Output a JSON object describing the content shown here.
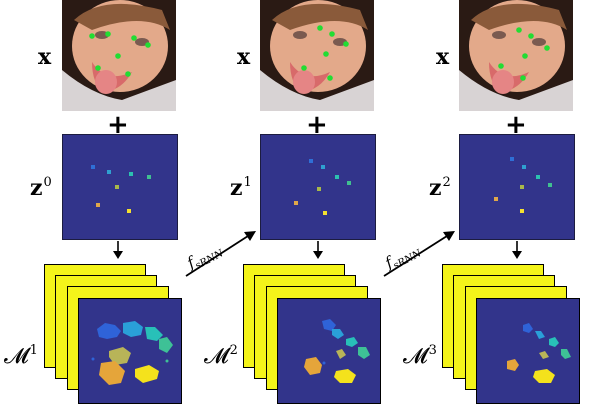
{
  "input_label": "x",
  "plus_sign": "+",
  "columns": [
    {
      "z_base": "z",
      "z_sup": "0",
      "m_base": "𝓜",
      "m_sup": "1"
    },
    {
      "z_base": "z",
      "z_sup": "1",
      "m_base": "𝓜",
      "m_sup": "2"
    },
    {
      "z_base": "z",
      "z_sup": "2",
      "m_base": "𝓜",
      "m_sup": "3"
    }
  ],
  "transition": {
    "base": "f",
    "sub": "sRNN"
  },
  "colors": {
    "heatmap_background": "#32348b",
    "layer_yellow": "#f4f41a",
    "landmark_green": "#22dd33"
  }
}
